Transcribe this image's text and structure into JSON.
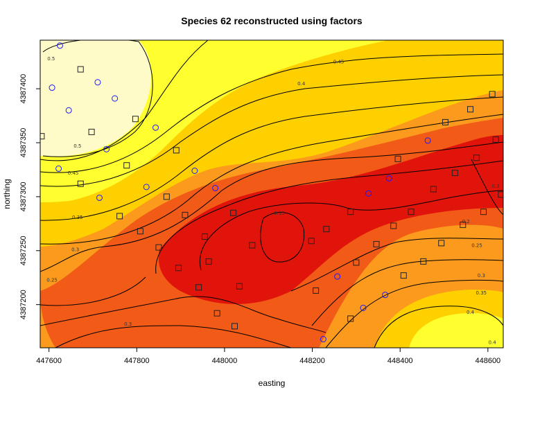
{
  "chart_data": {
    "type": "heatmap",
    "title": "Species 62 reconstructed using factors",
    "xlabel": "easting",
    "ylabel": "northing",
    "xlim": [
      447580,
      448635
    ],
    "ylim": [
      4387160,
      4387445
    ],
    "x_ticks": [
      447600,
      447800,
      448000,
      448200,
      448400,
      448600
    ],
    "y_ticks": [
      4387200,
      4387250,
      4387300,
      4387350,
      4387400
    ],
    "color_scale": {
      "low": "#e0140a",
      "mid_low": "#f25a18",
      "mid": "#fb9a1c",
      "mid_high": "#ffd000",
      "high": "#ffff30",
      "top": "#fffbc8"
    },
    "contour_levels": [
      0.15,
      0.2,
      0.25,
      0.3,
      0.35,
      0.4,
      0.45,
      0.5
    ],
    "contour_labels": [
      {
        "text": "0.5",
        "x": 447605,
        "y": 4387428
      },
      {
        "text": "0.45",
        "x": 448260,
        "y": 4387425
      },
      {
        "text": "0.4",
        "x": 448175,
        "y": 4387405
      },
      {
        "text": "0.5",
        "x": 447665,
        "y": 4387347
      },
      {
        "text": "0.45",
        "x": 447655,
        "y": 4387322
      },
      {
        "text": "0.35",
        "x": 447665,
        "y": 4387281
      },
      {
        "text": "0.3",
        "x": 447660,
        "y": 4387251
      },
      {
        "text": "0.25",
        "x": 447607,
        "y": 4387223
      },
      {
        "text": "0.15",
        "x": 448125,
        "y": 4387285
      },
      {
        "text": "0.2",
        "x": 448550,
        "y": 4387277
      },
      {
        "text": "0.25",
        "x": 448575,
        "y": 4387255
      },
      {
        "text": "0.3",
        "x": 448585,
        "y": 4387227
      },
      {
        "text": "0.35",
        "x": 448585,
        "y": 4387211
      },
      {
        "text": "0.3",
        "x": 447780,
        "y": 4387182
      },
      {
        "text": "0.4",
        "x": 448560,
        "y": 4387193
      },
      {
        "text": "0.4",
        "x": 448610,
        "y": 4387165
      },
      {
        "text": "0.3",
        "x": 448618,
        "y": 4387310
      }
    ],
    "circles": [
      [
        447625,
        4387440
      ],
      [
        447607,
        4387401
      ],
      [
        447711,
        4387406
      ],
      [
        447750,
        4387391
      ],
      [
        447645,
        4387380
      ],
      [
        447843,
        4387364
      ],
      [
        447731,
        4387344
      ],
      [
        447622,
        4387326
      ],
      [
        447932,
        4387324
      ],
      [
        447822,
        4387309
      ],
      [
        447715,
        4387299
      ],
      [
        447979,
        4387308
      ],
      [
        448463,
        4387352
      ],
      [
        448375,
        4387317
      ],
      [
        448328,
        4387303
      ],
      [
        448257,
        4387226
      ],
      [
        448366,
        4387209
      ],
      [
        448316,
        4387197
      ],
      [
        448225,
        4387168
      ]
    ],
    "squares": [
      [
        447672,
        4387418
      ],
      [
        447583,
        4387356
      ],
      [
        447797,
        4387372
      ],
      [
        447697,
        4387360
      ],
      [
        447890,
        4387343
      ],
      [
        447777,
        4387329
      ],
      [
        447672,
        4387312
      ],
      [
        447868,
        4387300
      ],
      [
        447761,
        4387282
      ],
      [
        447910,
        4387283
      ],
      [
        447808,
        4387268
      ],
      [
        447955,
        4387263
      ],
      [
        447850,
        4387253
      ],
      [
        448020,
        4387285
      ],
      [
        448063,
        4387255
      ],
      [
        448198,
        4387259
      ],
      [
        448232,
        4387270
      ],
      [
        448287,
        4387286
      ],
      [
        448385,
        4387273
      ],
      [
        448346,
        4387256
      ],
      [
        448476,
        4387307
      ],
      [
        448425,
        4387286
      ],
      [
        448525,
        4387322
      ],
      [
        448610,
        4387395
      ],
      [
        448560,
        4387381
      ],
      [
        448494,
        4387257
      ],
      [
        448395,
        4387335
      ],
      [
        448503,
        4387369
      ],
      [
        448574,
        4387336
      ],
      [
        448618,
        4387353
      ],
      [
        448630,
        4387302
      ],
      [
        448590,
        4387286
      ],
      [
        448543,
        4387274
      ],
      [
        448453,
        4387240
      ],
      [
        448408,
        4387227
      ],
      [
        447895,
        4387234
      ],
      [
        447964,
        4387240
      ],
      [
        447941,
        4387216
      ],
      [
        448034,
        4387217
      ],
      [
        448300,
        4387239
      ],
      [
        448208,
        4387213
      ],
      [
        447983,
        4387192
      ],
      [
        448287,
        4387187
      ],
      [
        448023,
        4387180
      ]
    ]
  }
}
